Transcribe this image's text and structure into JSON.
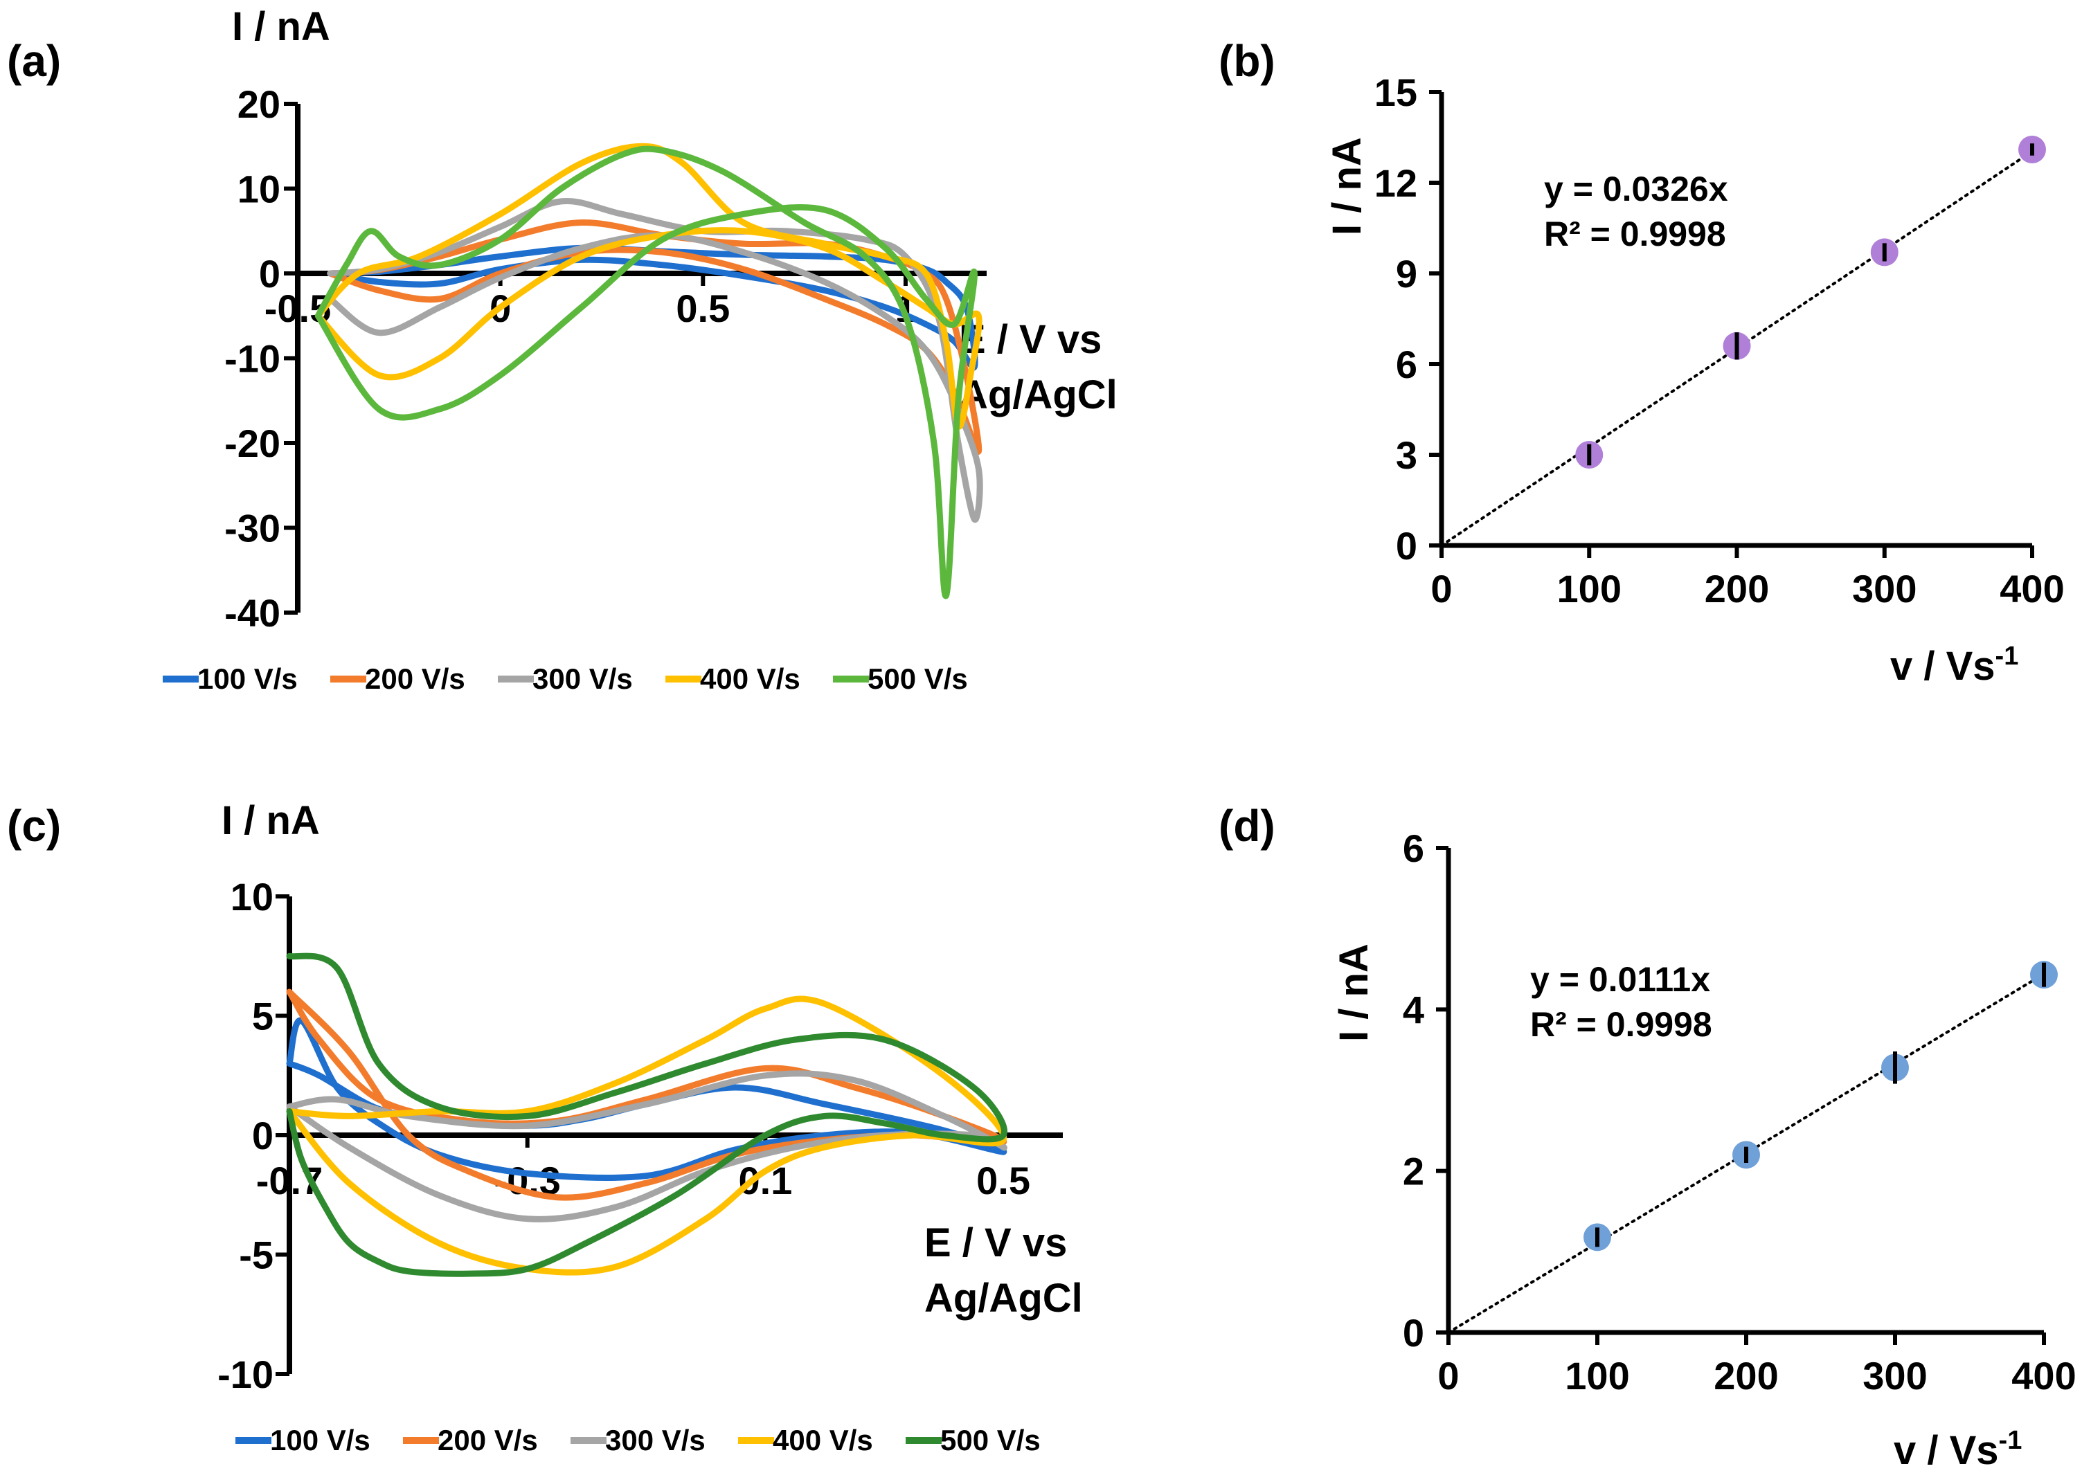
{
  "figure": {
    "panels": [
      "(a)",
      "(b)",
      "(c)",
      "(d)"
    ]
  },
  "chart_data": [
    {
      "id": "a",
      "type": "line",
      "panel_label": "(a)",
      "ylabel": "I / nA",
      "xlabel_line1": "E / V vs",
      "xlabel_line2": "Ag/AgCl",
      "xlim": [
        -0.5,
        1.2
      ],
      "ylim": [
        -40,
        20
      ],
      "xticks": [
        -0.5,
        0,
        0.5,
        1
      ],
      "xtick_labels": [
        "-0.5",
        "0",
        "0.5",
        "1"
      ],
      "yticks": [
        20,
        10,
        0,
        -10,
        -20,
        -30,
        -40
      ],
      "ytick_labels": [
        "20",
        "10",
        "0",
        "-10",
        "-20",
        "-30",
        "-40"
      ],
      "legend": [
        "100 V/s",
        "200 V/s",
        "300 V/s",
        "400 V/s",
        "500 V/s"
      ],
      "series": [
        {
          "name": "100 V/s",
          "color": "#1f6fcf",
          "x": [
            -0.42,
            -0.3,
            -0.15,
            0.0,
            0.2,
            0.4,
            0.6,
            0.8,
            0.95,
            1.05,
            1.1,
            1.15,
            1.17,
            1.12,
            1.05,
            0.95,
            0.8,
            0.6,
            0.4,
            0.2,
            0.0,
            -0.15,
            -0.3,
            -0.42
          ],
          "y": [
            0,
            0.2,
            1.0,
            2.0,
            3.0,
            2.6,
            2.2,
            2.0,
            1.6,
            0.5,
            -1.0,
            -4.0,
            -11.0,
            -8.0,
            -6.0,
            -4.0,
            -2.0,
            -0.3,
            1.0,
            1.6,
            0.5,
            -1.2,
            -1.0,
            0
          ]
        },
        {
          "name": "200 V/s",
          "color": "#f27c2c",
          "x": [
            -0.42,
            -0.3,
            -0.15,
            0.0,
            0.2,
            0.4,
            0.6,
            0.8,
            0.95,
            1.05,
            1.1,
            1.15,
            1.18,
            1.12,
            1.05,
            0.95,
            0.8,
            0.6,
            0.4,
            0.2,
            0.0,
            -0.15,
            -0.3,
            -0.42
          ],
          "y": [
            0,
            0.4,
            2.0,
            4.0,
            6.0,
            4.5,
            3.5,
            3.5,
            2.0,
            0,
            -3.0,
            -12.0,
            -21.0,
            -14.0,
            -9.0,
            -6.0,
            -3.0,
            0.5,
            2.5,
            2.5,
            0,
            -3.0,
            -2.0,
            0
          ]
        },
        {
          "name": "300 V/s",
          "color": "#a5a5a5",
          "x": [
            -0.42,
            -0.3,
            -0.15,
            0.0,
            0.15,
            0.3,
            0.5,
            0.7,
            0.9,
            1.0,
            1.08,
            1.13,
            1.17,
            1.18,
            1.12,
            1.05,
            0.95,
            0.8,
            0.6,
            0.4,
            0.2,
            0.0,
            -0.15,
            -0.3,
            -0.42
          ],
          "y": [
            0,
            0.5,
            2.5,
            5.5,
            8.5,
            7.0,
            5.0,
            5.0,
            4.0,
            2.0,
            -5.0,
            -20.0,
            -29.0,
            -23.0,
            -15.0,
            -9.0,
            -5.0,
            -1.0,
            2.5,
            4.5,
            3.0,
            -0.5,
            -4.0,
            -7.0,
            -3.0
          ]
        },
        {
          "name": "400 V/s",
          "color": "#ffc000",
          "x": [
            -0.45,
            -0.35,
            -0.2,
            0.0,
            0.2,
            0.35,
            0.45,
            0.6,
            0.8,
            0.95,
            1.05,
            1.1,
            1.13,
            1.16,
            1.18,
            1.12,
            1.05,
            0.95,
            0.8,
            0.6,
            0.4,
            0.2,
            0.0,
            -0.15,
            -0.3,
            -0.45
          ],
          "y": [
            -5,
            0,
            2.0,
            7.0,
            13.0,
            15.0,
            13.0,
            6.0,
            3.5,
            2.0,
            0,
            -8.0,
            -18.0,
            -12.0,
            -5.0,
            -6.0,
            -4.0,
            -1.0,
            3.0,
            5.0,
            4.5,
            2.0,
            -4.0,
            -10.0,
            -12.0,
            -5.0
          ]
        },
        {
          "name": "500 V/s",
          "color": "#5cb83d",
          "x": [
            -0.45,
            -0.38,
            -0.32,
            -0.25,
            -0.15,
            0.0,
            0.15,
            0.3,
            0.4,
            0.55,
            0.75,
            0.9,
            1.0,
            1.07,
            1.1,
            1.13,
            1.17,
            1.12,
            1.05,
            0.95,
            0.8,
            0.6,
            0.4,
            0.2,
            0.0,
            -0.15,
            -0.3,
            -0.45
          ],
          "y": [
            -5,
            1.0,
            5.0,
            2.0,
            1.0,
            4.0,
            10.0,
            14.0,
            14.5,
            12.0,
            6.0,
            2.0,
            -5.0,
            -20.0,
            -38.0,
            -15.0,
            0,
            -6.0,
            -3.0,
            3.0,
            7.5,
            7.0,
            4.0,
            -4.0,
            -12.0,
            -16.0,
            -16.0,
            -5.0
          ]
        }
      ]
    },
    {
      "id": "b",
      "type": "scatter",
      "panel_label": "(b)",
      "ylabel": "I / nA",
      "xlabel_base": "v / Vs",
      "xlabel_sup": "-1",
      "xlim": [
        0,
        400
      ],
      "ylim": [
        0,
        15
      ],
      "xticks": [
        0,
        100,
        200,
        300,
        400
      ],
      "xtick_labels": [
        "0",
        "100",
        "200",
        "300",
        "400"
      ],
      "yticks": [
        0,
        3,
        6,
        9,
        12,
        15
      ],
      "ytick_labels": [
        "0",
        "3",
        "6",
        "9",
        "12",
        "15"
      ],
      "points": {
        "x": [
          100,
          200,
          300,
          400
        ],
        "y": [
          3.0,
          6.6,
          9.7,
          13.1
        ],
        "err": [
          0.35,
          0.45,
          0.3,
          0.2
        ]
      },
      "marker_color": "#b07fd8",
      "trendline": {
        "slope": 0.0326
      },
      "equation": "y = 0.0326x",
      "r2": "R² = 0.9998"
    },
    {
      "id": "c",
      "type": "line",
      "panel_label": "(c)",
      "ylabel": "I / nA",
      "xlabel_line1": "E / V vs",
      "xlabel_line2": "Ag/AgCl",
      "xlim": [
        -0.7,
        0.6
      ],
      "ylim": [
        -10,
        10
      ],
      "xticks": [
        -0.7,
        -0.3,
        0.1,
        0.5
      ],
      "xtick_labels": [
        "-0.7",
        "-0.3",
        "0.1",
        "0.5"
      ],
      "yticks": [
        10,
        5,
        0,
        -5,
        -10
      ],
      "ytick_labels": [
        "10",
        "5",
        "0",
        "-5",
        "-10"
      ],
      "legend": [
        "100 V/s",
        "200 V/s",
        "300 V/s",
        "400 V/s",
        "500 V/s"
      ],
      "series": [
        {
          "name": "100 V/s",
          "color": "#1f6fcf",
          "x": [
            -0.7,
            -0.68,
            -0.62,
            -0.55,
            -0.45,
            -0.3,
            -0.1,
            0.05,
            0.2,
            0.35,
            0.5,
            0.4,
            0.2,
            0.05,
            -0.1,
            -0.2,
            -0.3,
            -0.45,
            -0.55,
            -0.65,
            -0.7
          ],
          "y": [
            3.0,
            4.8,
            2.0,
            0.5,
            -0.8,
            -1.6,
            -1.7,
            -0.6,
            0,
            0.1,
            -0.7,
            0.2,
            1.3,
            2.0,
            1.3,
            0.7,
            0.4,
            0.7,
            1.1,
            2.5,
            3.0
          ]
        },
        {
          "name": "200 V/s",
          "color": "#f27c2c",
          "x": [
            -0.7,
            -0.6,
            -0.5,
            -0.4,
            -0.25,
            -0.1,
            0.05,
            0.2,
            0.35,
            0.5,
            0.4,
            0.25,
            0.1,
            -0.1,
            -0.25,
            -0.4,
            -0.55,
            -0.65,
            -0.7
          ],
          "y": [
            6.0,
            3.5,
            0,
            -1.5,
            -2.6,
            -2.0,
            -0.8,
            -0.2,
            0,
            -0.3,
            0.8,
            2.0,
            2.8,
            1.5,
            0.6,
            0.6,
            1.5,
            4.0,
            6.0
          ]
        },
        {
          "name": "300 V/s",
          "color": "#a5a5a5",
          "x": [
            -0.7,
            -0.6,
            -0.45,
            -0.3,
            -0.15,
            0.0,
            0.15,
            0.3,
            0.45,
            0.5,
            0.4,
            0.25,
            0.1,
            -0.1,
            -0.3,
            -0.5,
            -0.62,
            -0.7
          ],
          "y": [
            1.2,
            -0.5,
            -2.5,
            -3.5,
            -3.0,
            -1.5,
            -0.5,
            0,
            0,
            -0.5,
            0.8,
            2.3,
            2.5,
            1.3,
            0.4,
            0.8,
            1.5,
            1.2
          ]
        },
        {
          "name": "400 V/s",
          "color": "#ffc000",
          "x": [
            -0.7,
            -0.6,
            -0.45,
            -0.3,
            -0.15,
            0.0,
            0.1,
            0.2,
            0.35,
            0.5,
            0.4,
            0.2,
            0.1,
            0.0,
            -0.15,
            -0.3,
            -0.45,
            -0.6,
            -0.7
          ],
          "y": [
            1.0,
            -2.0,
            -4.5,
            -5.6,
            -5.5,
            -3.5,
            -1.5,
            -0.5,
            0,
            -0.2,
            2.5,
            5.5,
            5.3,
            4.0,
            2.2,
            1.0,
            1.0,
            0.8,
            1.0
          ]
        },
        {
          "name": "500 V/s",
          "color": "#2f8a2f",
          "x": [
            -0.7,
            -0.68,
            -0.64,
            -0.6,
            -0.55,
            -0.5,
            -0.4,
            -0.3,
            -0.2,
            -0.05,
            0.1,
            0.2,
            0.3,
            0.4,
            0.5,
            0.45,
            0.3,
            0.15,
            0.0,
            -0.15,
            -0.3,
            -0.45,
            -0.55,
            -0.62,
            -0.7
          ],
          "y": [
            1.0,
            -1.0,
            -3.0,
            -4.5,
            -5.3,
            -5.7,
            -5.8,
            -5.6,
            -4.5,
            -2.5,
            0,
            0.8,
            0.5,
            0,
            0,
            2.0,
            4.0,
            4.0,
            3.0,
            1.8,
            0.8,
            1.2,
            3.0,
            7.0,
            7.5
          ]
        }
      ]
    },
    {
      "id": "d",
      "type": "scatter",
      "panel_label": "(d)",
      "ylabel": "I / nA",
      "xlabel_base": "v / Vs",
      "xlabel_sup": "-1",
      "xlim": [
        0,
        400
      ],
      "ylim": [
        0,
        6
      ],
      "xticks": [
        0,
        100,
        200,
        300,
        400
      ],
      "xtick_labels": [
        "0",
        "100",
        "200",
        "300",
        "400"
      ],
      "yticks": [
        0,
        2,
        4,
        6
      ],
      "ytick_labels": [
        "0",
        "2",
        "4",
        "6"
      ],
      "points": {
        "x": [
          100,
          200,
          300,
          400
        ],
        "y": [
          1.18,
          2.2,
          3.28,
          4.43
        ],
        "err": [
          0.12,
          0.1,
          0.2,
          0.15
        ]
      },
      "marker_color": "#6fa0d8",
      "trendline": {
        "slope": 0.0111
      },
      "equation": "y = 0.0111x",
      "r2": "R² = 0.9998"
    }
  ]
}
